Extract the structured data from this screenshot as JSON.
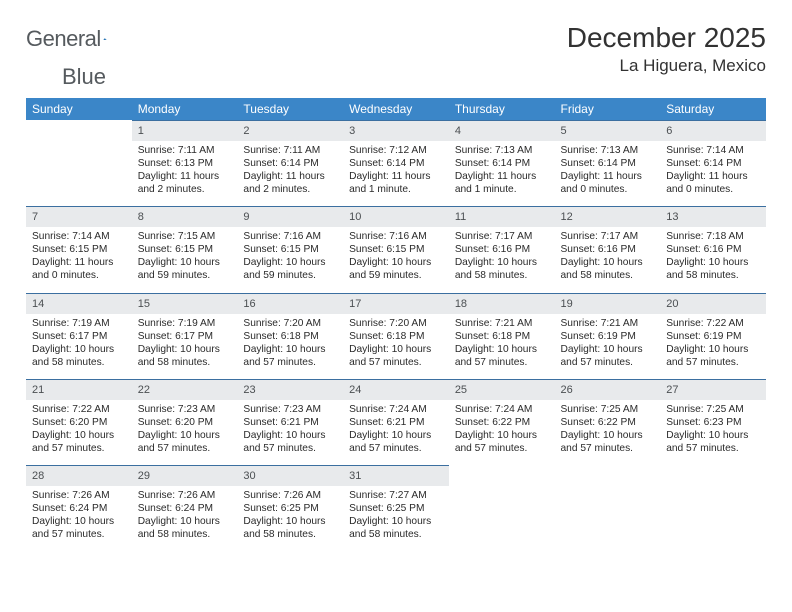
{
  "brand": {
    "name_a": "General",
    "name_b": "Blue"
  },
  "colors": {
    "header_bg": "#3b86c8",
    "header_fg": "#ffffff",
    "daynum_bg": "#e8eaec",
    "daynum_border": "#3b6fa0",
    "text": "#2a2a2a",
    "brand_blue": "#1f6fb2"
  },
  "title": "December 2025",
  "location": "La Higuera, Mexico",
  "weekdays": [
    "Sunday",
    "Monday",
    "Tuesday",
    "Wednesday",
    "Thursday",
    "Friday",
    "Saturday"
  ],
  "weeks": [
    [
      null,
      {
        "n": "1",
        "sr": "7:11 AM",
        "ss": "6:13 PM",
        "dl": "11 hours and 2 minutes."
      },
      {
        "n": "2",
        "sr": "7:11 AM",
        "ss": "6:14 PM",
        "dl": "11 hours and 2 minutes."
      },
      {
        "n": "3",
        "sr": "7:12 AM",
        "ss": "6:14 PM",
        "dl": "11 hours and 1 minute."
      },
      {
        "n": "4",
        "sr": "7:13 AM",
        "ss": "6:14 PM",
        "dl": "11 hours and 1 minute."
      },
      {
        "n": "5",
        "sr": "7:13 AM",
        "ss": "6:14 PM",
        "dl": "11 hours and 0 minutes."
      },
      {
        "n": "6",
        "sr": "7:14 AM",
        "ss": "6:14 PM",
        "dl": "11 hours and 0 minutes."
      }
    ],
    [
      {
        "n": "7",
        "sr": "7:14 AM",
        "ss": "6:15 PM",
        "dl": "11 hours and 0 minutes."
      },
      {
        "n": "8",
        "sr": "7:15 AM",
        "ss": "6:15 PM",
        "dl": "10 hours and 59 minutes."
      },
      {
        "n": "9",
        "sr": "7:16 AM",
        "ss": "6:15 PM",
        "dl": "10 hours and 59 minutes."
      },
      {
        "n": "10",
        "sr": "7:16 AM",
        "ss": "6:15 PM",
        "dl": "10 hours and 59 minutes."
      },
      {
        "n": "11",
        "sr": "7:17 AM",
        "ss": "6:16 PM",
        "dl": "10 hours and 58 minutes."
      },
      {
        "n": "12",
        "sr": "7:17 AM",
        "ss": "6:16 PM",
        "dl": "10 hours and 58 minutes."
      },
      {
        "n": "13",
        "sr": "7:18 AM",
        "ss": "6:16 PM",
        "dl": "10 hours and 58 minutes."
      }
    ],
    [
      {
        "n": "14",
        "sr": "7:19 AM",
        "ss": "6:17 PM",
        "dl": "10 hours and 58 minutes."
      },
      {
        "n": "15",
        "sr": "7:19 AM",
        "ss": "6:17 PM",
        "dl": "10 hours and 58 minutes."
      },
      {
        "n": "16",
        "sr": "7:20 AM",
        "ss": "6:18 PM",
        "dl": "10 hours and 57 minutes."
      },
      {
        "n": "17",
        "sr": "7:20 AM",
        "ss": "6:18 PM",
        "dl": "10 hours and 57 minutes."
      },
      {
        "n": "18",
        "sr": "7:21 AM",
        "ss": "6:18 PM",
        "dl": "10 hours and 57 minutes."
      },
      {
        "n": "19",
        "sr": "7:21 AM",
        "ss": "6:19 PM",
        "dl": "10 hours and 57 minutes."
      },
      {
        "n": "20",
        "sr": "7:22 AM",
        "ss": "6:19 PM",
        "dl": "10 hours and 57 minutes."
      }
    ],
    [
      {
        "n": "21",
        "sr": "7:22 AM",
        "ss": "6:20 PM",
        "dl": "10 hours and 57 minutes."
      },
      {
        "n": "22",
        "sr": "7:23 AM",
        "ss": "6:20 PM",
        "dl": "10 hours and 57 minutes."
      },
      {
        "n": "23",
        "sr": "7:23 AM",
        "ss": "6:21 PM",
        "dl": "10 hours and 57 minutes."
      },
      {
        "n": "24",
        "sr": "7:24 AM",
        "ss": "6:21 PM",
        "dl": "10 hours and 57 minutes."
      },
      {
        "n": "25",
        "sr": "7:24 AM",
        "ss": "6:22 PM",
        "dl": "10 hours and 57 minutes."
      },
      {
        "n": "26",
        "sr": "7:25 AM",
        "ss": "6:22 PM",
        "dl": "10 hours and 57 minutes."
      },
      {
        "n": "27",
        "sr": "7:25 AM",
        "ss": "6:23 PM",
        "dl": "10 hours and 57 minutes."
      }
    ],
    [
      {
        "n": "28",
        "sr": "7:26 AM",
        "ss": "6:24 PM",
        "dl": "10 hours and 57 minutes."
      },
      {
        "n": "29",
        "sr": "7:26 AM",
        "ss": "6:24 PM",
        "dl": "10 hours and 58 minutes."
      },
      {
        "n": "30",
        "sr": "7:26 AM",
        "ss": "6:25 PM",
        "dl": "10 hours and 58 minutes."
      },
      {
        "n": "31",
        "sr": "7:27 AM",
        "ss": "6:25 PM",
        "dl": "10 hours and 58 minutes."
      },
      null,
      null,
      null
    ]
  ],
  "labels": {
    "sunrise": "Sunrise: ",
    "sunset": "Sunset: ",
    "daylight": "Daylight: "
  }
}
